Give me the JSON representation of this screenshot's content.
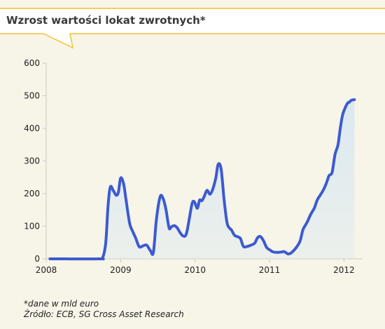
{
  "title": "Wzrost wartości lokat zwrotnych*",
  "footnotes": {
    "note": "*dane w mld euro",
    "source": "Źródło: ECB, SG Cross Asset Research"
  },
  "colors": {
    "line": "#3c5ad0",
    "fill": "#d7e8f2",
    "accent": "#f2c230",
    "grid": "#cfcac0"
  },
  "chart_data": {
    "type": "area",
    "title": "Wzrost wartości lokat zwrotnych*",
    "xlabel": "",
    "ylabel": "",
    "xlim": [
      2008.0,
      2012.25
    ],
    "ylim": [
      0,
      600
    ],
    "y_ticks": [
      "0",
      "100",
      "200",
      "300",
      "400",
      "500",
      "600"
    ],
    "x_ticks": [
      "2008",
      "2009",
      "2010",
      "2011",
      "2012"
    ],
    "grid": false,
    "series": [
      {
        "x": [
          2008.05,
          2008.7,
          2008.76,
          2008.8,
          2008.83,
          2008.86,
          2008.9,
          2008.94,
          2008.97,
          2009.0,
          2009.04,
          2009.07,
          2009.12,
          2009.16,
          2009.2,
          2009.25,
          2009.3,
          2009.35,
          2009.4,
          2009.44,
          2009.48,
          2009.53,
          2009.57,
          2009.61,
          2009.65,
          2009.68,
          2009.72,
          2009.76,
          2009.8,
          2009.84,
          2009.88,
          2009.92,
          2009.96,
          2009.99,
          2010.03,
          2010.06,
          2010.09,
          2010.12,
          2010.16,
          2010.2,
          2010.24,
          2010.28,
          2010.31,
          2010.35,
          2010.39,
          2010.43,
          2010.46,
          2010.49,
          2010.53,
          2010.57,
          2010.61,
          2010.65,
          2010.7,
          2010.75,
          2010.8,
          2010.84,
          2010.88,
          2010.92,
          2010.96,
          2011.0,
          2011.04,
          2011.08,
          2011.12,
          2011.16,
          2011.2,
          2011.25,
          2011.3,
          2011.36,
          2011.41,
          2011.45,
          2011.5,
          2011.55,
          2011.6,
          2011.64,
          2011.68,
          2011.72,
          2011.76,
          2011.8,
          2011.84,
          2011.88,
          2011.92,
          2011.95,
          2011.98,
          2012.01,
          2012.03,
          2012.05,
          2012.07,
          2012.09,
          2012.11,
          2012.14
        ],
        "values": [
          0,
          0,
          5,
          50,
          160,
          220,
          210,
          195,
          205,
          248,
          230,
          185,
          110,
          85,
          65,
          37,
          40,
          42,
          25,
          20,
          120,
          190,
          185,
          150,
          95,
          98,
          102,
          95,
          80,
          70,
          75,
          120,
          170,
          175,
          155,
          180,
          178,
          190,
          210,
          198,
          215,
          250,
          290,
          275,
          180,
          110,
          95,
          88,
          72,
          68,
          62,
          38,
          38,
          42,
          48,
          65,
          68,
          55,
          35,
          28,
          22,
          20,
          20,
          21,
          22,
          15,
          20,
          35,
          55,
          90,
          110,
          135,
          155,
          180,
          195,
          210,
          230,
          255,
          265,
          320,
          350,
          400,
          440,
          460,
          470,
          478,
          480,
          485,
          487,
          488
        ]
      }
    ]
  }
}
